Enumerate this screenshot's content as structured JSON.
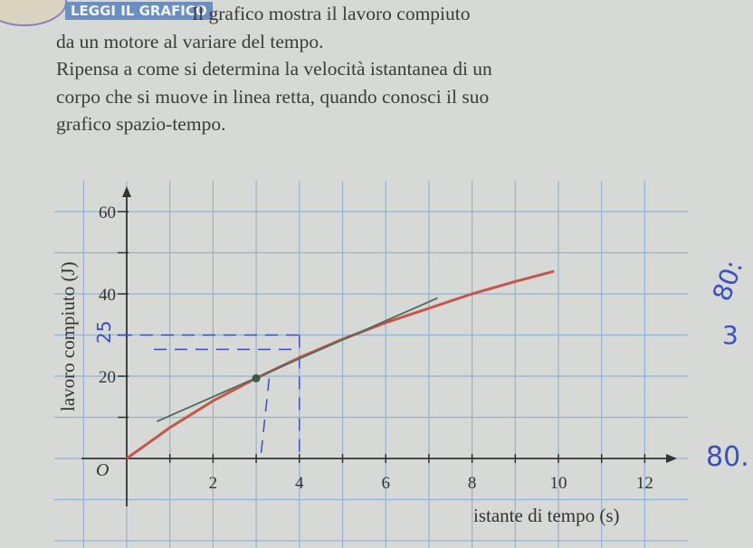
{
  "header": {
    "badge": "LEGGI IL GRAFICO",
    "lines": [
      "Il grafico mostra il lavoro compiuto",
      "da un motore al variare del tempo.",
      "Ripensa a come si determina la velocità istantanea di un",
      "corpo che si muove in linea retta, quando conosci il suo",
      "grafico spazio-tempo."
    ]
  },
  "chart_data": {
    "type": "line",
    "title": "",
    "xlabel": "istante di tempo (s)",
    "ylabel": "lavoro compiuto (J)",
    "origin_label": "O",
    "xlim": [
      0,
      12.5
    ],
    "ylim": [
      0,
      65
    ],
    "xticks": [
      2,
      4,
      6,
      8,
      10,
      12
    ],
    "yticks": [
      20,
      40,
      60
    ],
    "grid": true,
    "colors": {
      "curve": "#c8554a",
      "tangent": "#4f6a5a",
      "grid": "#8fb3d6",
      "axis": "#333333",
      "ink": "#3a4fc0"
    },
    "series": [
      {
        "x": [
          0,
          1,
          2,
          3,
          4,
          5,
          6,
          7,
          8,
          9,
          9.9
        ],
        "y": [
          0,
          7.5,
          14,
          19.5,
          24.5,
          29,
          33,
          36.5,
          40,
          43,
          45.5
        ]
      }
    ],
    "tangent_line": {
      "x": [
        0.7,
        7.2
      ],
      "y": [
        9,
        39
      ]
    },
    "marked_point": {
      "x": 3,
      "y": 19.5
    },
    "handwritten": {
      "y_label": "25",
      "margin_1": "80:",
      "margin_2": "3",
      "margin_3": "80."
    }
  }
}
